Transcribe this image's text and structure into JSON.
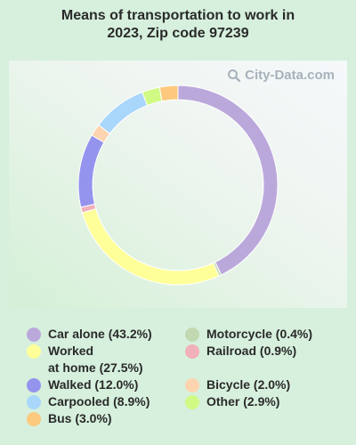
{
  "title": "Means of transportation to work in\n2023, Zip code 97239",
  "watermark": "City-Data.com",
  "chart_data": {
    "type": "pie",
    "donut": true,
    "title": "Means of transportation to work in 2023, Zip code 97239",
    "categories": [
      "Car alone",
      "Motorcycle",
      "Worked at home",
      "Railroad",
      "Walked",
      "Bicycle",
      "Carpooled",
      "Other",
      "Bus"
    ],
    "values": [
      43.2,
      0.4,
      27.5,
      0.9,
      12.0,
      2.0,
      8.9,
      2.9,
      3.0
    ],
    "colors": [
      "#bba8db",
      "#c2d8b0",
      "#ffff99",
      "#f2b0b8",
      "#9494ee",
      "#fcd4b0",
      "#a9d6fb",
      "#d0fa84",
      "#fcc97e"
    ],
    "legend_placement": "bottom"
  },
  "legend": [
    {
      "label": "Car alone (43.2%)",
      "color": "#bba8db"
    },
    {
      "label": "Worked\nat home (27.5%)",
      "color": "#ffff99"
    },
    {
      "label": "Walked (12.0%)",
      "color": "#9494ee"
    },
    {
      "label": "Carpooled (8.9%)",
      "color": "#a9d6fb"
    },
    {
      "label": "Bus (3.0%)",
      "color": "#fcc97e"
    },
    {
      "label": "Motorcycle (0.4%)",
      "color": "#c2d8b0"
    },
    {
      "label": "Railroad (0.9%)",
      "color": "#f2b0b8"
    },
    {
      "label": "Bicycle (2.0%)",
      "color": "#fcd4b0"
    },
    {
      "label": "Other (2.9%)",
      "color": "#d0fa84"
    }
  ]
}
